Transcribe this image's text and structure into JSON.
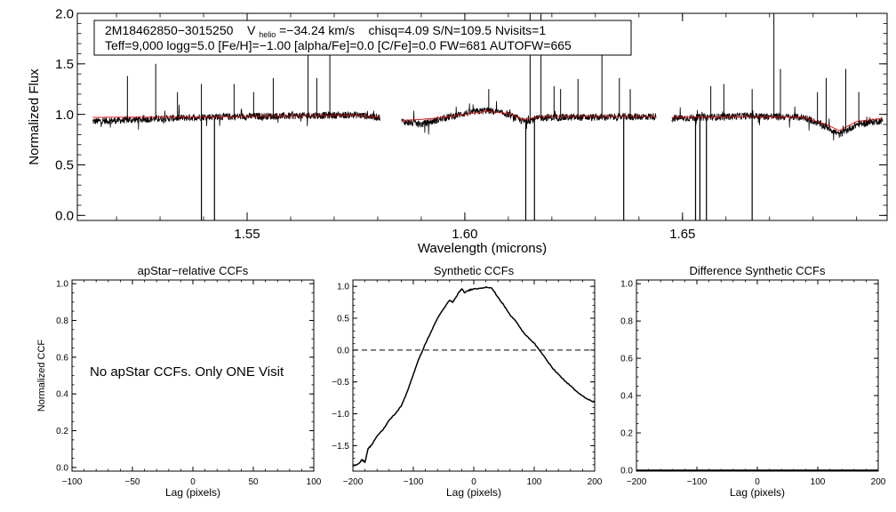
{
  "figure": {
    "info_box": {
      "line1": {
        "star_id": "2M18462850−3015250",
        "v_prefix": "V",
        "v_sub": "helio",
        "v_value": "=−34.24 km/s",
        "rest": "chisq=4.09  S/N=109.5  Nvisits=1"
      },
      "line2": "Teff=9,000 logg=5.0 [Fe/H]=−1.00 [alpha/Fe]=0.0 [C/Fe]=0.0 FW=681 AUTOFW=665"
    },
    "no_ccf_message": "No apStar CCFs.  Only ONE Visit"
  },
  "chart_data": [
    {
      "id": "spectrum",
      "type": "line",
      "title": "",
      "xlabel": "Wavelength (microns)",
      "ylabel": "Normalized Flux",
      "xlim": [
        1.511,
        1.697
      ],
      "ylim": [
        -0.05,
        2.0
      ],
      "xticks": [
        1.55,
        1.6,
        1.65
      ],
      "xtick_labels": [
        "1.55",
        "1.60",
        "1.65"
      ],
      "yticks": [
        0.0,
        0.5,
        1.0,
        1.5,
        2.0
      ],
      "ytick_labels": [
        "0.0",
        "0.5",
        "1.0",
        "1.5",
        "2.0"
      ],
      "chip_ranges": [
        [
          1.5145,
          1.5805
        ],
        [
          1.5855,
          1.644
        ],
        [
          1.6475,
          1.696
        ]
      ],
      "series": [
        {
          "name": "observed spectrum",
          "color": "#000000"
        },
        {
          "name": "best-fit model",
          "color": "#ff0000"
        }
      ],
      "continuum_profile": {
        "x": [
          1.5145,
          1.54,
          1.56,
          1.575,
          1.5805,
          1.5855,
          1.59,
          1.595,
          1.6,
          1.605,
          1.61,
          1.6135,
          1.618,
          1.63,
          1.644,
          1.6475,
          1.665,
          1.678,
          1.683,
          1.686,
          1.69,
          1.696
        ],
        "y": [
          0.93,
          0.975,
          0.985,
          0.995,
          0.97,
          0.93,
          0.9,
          0.96,
          1.01,
          1.04,
          1.0,
          0.93,
          0.97,
          0.97,
          0.98,
          0.96,
          0.985,
          0.97,
          0.88,
          0.8,
          0.9,
          0.94
        ],
        "model": [
          0.97,
          0.975,
          0.985,
          0.99,
          0.97,
          0.94,
          0.95,
          0.97,
          1.0,
          1.03,
          1.01,
          0.95,
          0.98,
          0.98,
          0.98,
          0.97,
          0.98,
          0.97,
          0.9,
          0.84,
          0.93,
          0.96
        ]
      },
      "spikes_up": [
        [
          1.5225,
          1.38
        ],
        [
          1.529,
          1.5
        ],
        [
          1.534,
          1.22
        ],
        [
          1.5395,
          1.3
        ],
        [
          1.547,
          1.3
        ],
        [
          1.5515,
          1.22
        ],
        [
          1.556,
          1.36
        ],
        [
          1.564,
          1.62
        ],
        [
          1.566,
          1.36
        ],
        [
          1.569,
          1.66
        ],
        [
          1.6055,
          1.25
        ],
        [
          1.615,
          2.0
        ],
        [
          1.6175,
          2.0
        ],
        [
          1.6205,
          1.28
        ],
        [
          1.622,
          1.25
        ],
        [
          1.626,
          1.35
        ],
        [
          1.6315,
          1.65
        ],
        [
          1.6355,
          1.36
        ],
        [
          1.638,
          1.25
        ],
        [
          1.6565,
          1.28
        ],
        [
          1.6595,
          1.3
        ],
        [
          1.666,
          1.25
        ],
        [
          1.671,
          2.0
        ],
        [
          1.6725,
          1.45
        ],
        [
          1.681,
          1.22
        ],
        [
          1.683,
          1.36
        ],
        [
          1.6875,
          1.45
        ],
        [
          1.6905,
          1.22
        ]
      ],
      "spikes_down": [
        [
          1.5395,
          -0.05
        ],
        [
          1.5425,
          -0.05
        ],
        [
          1.614,
          -0.05
        ],
        [
          1.616,
          -0.05
        ],
        [
          1.6365,
          -0.05
        ],
        [
          1.653,
          -0.05
        ],
        [
          1.654,
          -0.05
        ],
        [
          1.6555,
          -0.05
        ],
        [
          1.666,
          -0.05
        ]
      ]
    },
    {
      "id": "apstar-ccf",
      "type": "line",
      "title": "apStar−relative CCFs",
      "xlabel": "Lag (pixels)",
      "ylabel": "Normalized CCF",
      "xlim": [
        -100,
        100
      ],
      "ylim": [
        -0.02,
        1.02
      ],
      "xticks": [
        -100,
        -50,
        0,
        50,
        100
      ],
      "xtick_labels": [
        "−100",
        "−50",
        "0",
        "50",
        "100"
      ],
      "yticks": [
        0.0,
        0.2,
        0.4,
        0.6,
        0.8,
        1.0
      ],
      "ytick_labels": [
        "0.0",
        "0.2",
        "0.4",
        "0.6",
        "0.8",
        "1.0"
      ],
      "series": []
    },
    {
      "id": "synthetic-ccf",
      "type": "line",
      "title": "Synthetic CCFs",
      "xlabel": "Lag (pixels)",
      "ylabel": "",
      "xlim": [
        -200,
        200
      ],
      "ylim": [
        -1.9,
        1.1
      ],
      "xticks": [
        -200,
        -100,
        0,
        100,
        200
      ],
      "xtick_labels": [
        "−200",
        "−100",
        "0",
        "100",
        "200"
      ],
      "yticks": [
        -1.5,
        -1.0,
        -0.5,
        0.0,
        0.5,
        1.0
      ],
      "ytick_labels": [
        "−1.5",
        "−1.0",
        "−0.5",
        "0.0",
        "0.5",
        "1.0"
      ],
      "zero_line": 0.0,
      "series": [
        {
          "name": "synthetic ccf",
          "x": [
            -200,
            -190,
            -185,
            -180,
            -175,
            -170,
            -160,
            -150,
            -140,
            -130,
            -120,
            -110,
            -100,
            -90,
            -80,
            -70,
            -60,
            -50,
            -40,
            -35,
            -30,
            -25,
            -20,
            -15,
            -10,
            -5,
            0,
            10,
            20,
            30,
            40,
            50,
            60,
            70,
            80,
            90,
            100,
            110,
            120,
            130,
            140,
            150,
            160,
            170,
            180,
            190,
            200
          ],
          "y": [
            -1.82,
            -1.78,
            -1.72,
            -1.76,
            -1.55,
            -1.5,
            -1.35,
            -1.25,
            -1.1,
            -1.0,
            -0.88,
            -0.65,
            -0.38,
            -0.12,
            0.1,
            0.3,
            0.5,
            0.65,
            0.78,
            0.75,
            0.82,
            0.9,
            0.96,
            0.9,
            0.93,
            0.95,
            0.96,
            0.97,
            0.99,
            0.97,
            0.83,
            0.7,
            0.55,
            0.45,
            0.3,
            0.2,
            0.11,
            -0.02,
            -0.15,
            -0.28,
            -0.38,
            -0.48,
            -0.56,
            -0.65,
            -0.72,
            -0.78,
            -0.82
          ]
        }
      ]
    },
    {
      "id": "difference-ccf",
      "type": "line",
      "title": "Difference Synthetic CCFs",
      "xlabel": "Lag (pixels)",
      "ylabel": "",
      "xlim": [
        -200,
        200
      ],
      "ylim": [
        -0.005,
        1.02
      ],
      "xticks": [
        -200,
        -100,
        0,
        100,
        200
      ],
      "xtick_labels": [
        "−200",
        "−100",
        "0",
        "100",
        "200"
      ],
      "yticks": [
        0.0,
        0.2,
        0.4,
        0.6,
        0.8,
        1.0
      ],
      "ytick_labels": [
        "0.0",
        "0.2",
        "0.4",
        "0.6",
        "0.8",
        "1.0"
      ],
      "series": [
        {
          "name": "difference ccf",
          "x": [
            -200,
            200
          ],
          "y": [
            0.0,
            0.0
          ]
        }
      ]
    }
  ]
}
